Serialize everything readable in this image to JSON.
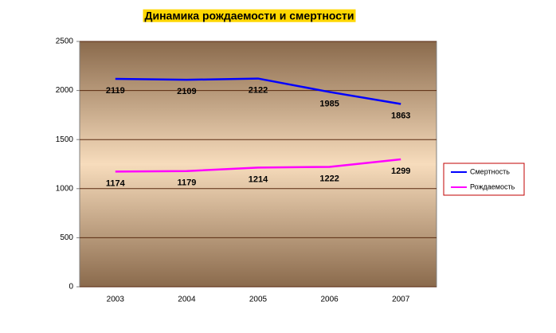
{
  "chart_data": {
    "type": "line",
    "title": "Динамика рождаемости и смертности",
    "categories": [
      "2003",
      "2004",
      "2005",
      "2006",
      "2007"
    ],
    "series": [
      {
        "name": "Смертность",
        "color": "#0000ff",
        "values": [
          2119,
          2109,
          2122,
          1985,
          1863
        ]
      },
      {
        "name": "Рождаемость",
        "color": "#ff00ff",
        "values": [
          1174,
          1179,
          1214,
          1222,
          1299
        ]
      }
    ],
    "ylim": [
      0,
      2500
    ],
    "yticks": [
      0,
      500,
      1000,
      1500,
      2000,
      2500
    ],
    "grid": true,
    "legend": "right"
  }
}
